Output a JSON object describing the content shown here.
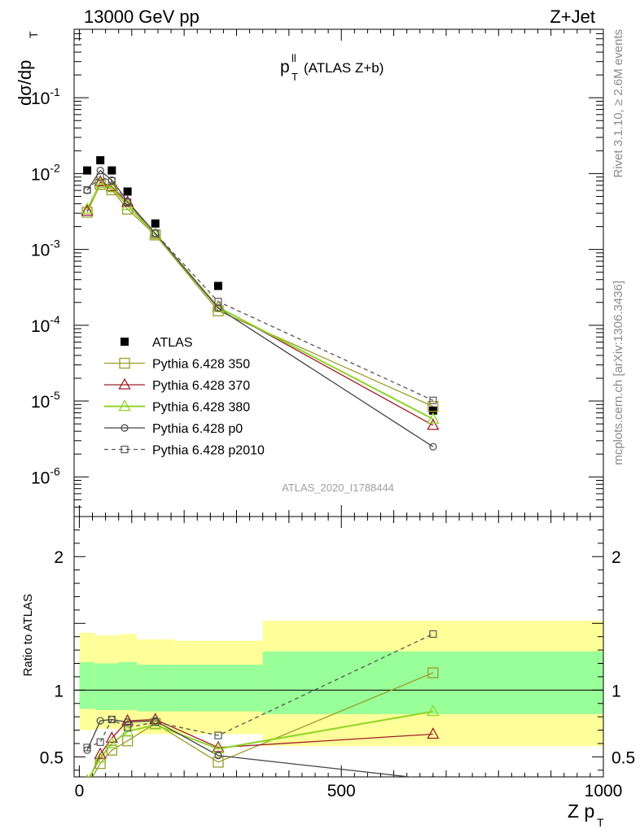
{
  "header": {
    "energy": "13000 GeV pp",
    "process": "Z+Jet",
    "plot_title_main": "p",
    "plot_title_sup": "ll",
    "plot_title_sub": "T",
    "plot_title_rest": "(ATLAS Z+b)",
    "analysis_id": "ATLAS_2020_I1788444",
    "rivet_note": "Rivet 3.1.10, ≥ 2.6M events",
    "mcplots_note": "mcplots.cern.ch [arXiv:1306.3436]"
  },
  "colors": {
    "atlas": "#000000",
    "p350": "#9b9b2a",
    "p370": "#a01c2a",
    "p380": "#8fd42a",
    "p0": "#444444",
    "p2010": "#555555",
    "band_inner": "#99ff99",
    "band_outer": "#ffff99"
  },
  "chart_data": [
    {
      "type": "scatter",
      "panel": "main",
      "xlabel": "Z p_T",
      "ylabel": "dσ/dp_T",
      "yscale": "log",
      "xlim": [
        -10,
        1000
      ],
      "ylim": [
        3e-07,
        0.8
      ],
      "y_ticks": [
        "10^-6",
        "10^-5",
        "10^-4",
        "10^-3",
        "10^-2",
        "10^-1"
      ],
      "legend_position": "lower-left",
      "x": [
        15,
        40,
        62,
        92,
        145,
        265,
        675
      ],
      "series": [
        {
          "name": "ATLAS",
          "key": "atlas",
          "marker": "filled-square",
          "line": "none",
          "values": [
            0.011,
            0.015,
            0.011,
            0.0058,
            0.0022,
            0.00033,
            7.5e-06
          ]
        },
        {
          "name": "Pythia 6.428 350",
          "key": "p350",
          "marker": "open-square",
          "line": "solid",
          "values": [
            0.0031,
            0.0072,
            0.0061,
            0.0034,
            0.00155,
            0.000155,
            8.5e-06
          ]
        },
        {
          "name": "Pythia 6.428 370",
          "key": "p370",
          "marker": "open-triangle",
          "line": "solid",
          "values": [
            0.0032,
            0.0078,
            0.0067,
            0.0042,
            0.0016,
            0.000175,
            4.8e-06
          ]
        },
        {
          "name": "Pythia 6.428 380",
          "key": "p380",
          "marker": "open-triangle",
          "line": "solid",
          "values": [
            0.0034,
            0.0074,
            0.0065,
            0.0038,
            0.00158,
            0.000172,
            5.8e-06
          ]
        },
        {
          "name": "Pythia 6.428 p0",
          "key": "p0",
          "marker": "open-circle",
          "line": "solid",
          "values": [
            0.006,
            0.011,
            0.0082,
            0.0043,
            0.00163,
            0.000168,
            2.5e-06
          ]
        },
        {
          "name": "Pythia 6.428 p2010",
          "key": "p2010",
          "marker": "open-square-small",
          "line": "dashed",
          "values": [
            0.0061,
            0.009,
            0.008,
            0.0042,
            0.00163,
            0.000205,
            1.02e-05
          ]
        }
      ]
    },
    {
      "type": "scatter",
      "panel": "ratio",
      "ylabel": "Ratio to ATLAS",
      "xlim": [
        -10,
        1000
      ],
      "ylim": [
        0.35,
        2.3
      ],
      "y_ticks": [
        0.5,
        1,
        2
      ],
      "x_ticks": [
        0,
        500,
        1000
      ],
      "band_edges": [
        0,
        30,
        50,
        75,
        110,
        180,
        350,
        1000
      ],
      "band_inner": [
        [
          0.86,
          1.21
        ],
        [
          0.85,
          1.2
        ],
        [
          0.85,
          1.2
        ],
        [
          0.85,
          1.21
        ],
        [
          0.84,
          1.19
        ],
        [
          0.84,
          1.19
        ],
        [
          0.82,
          1.29
        ]
      ],
      "band_outer": [
        [
          0.7,
          1.43
        ],
        [
          0.71,
          1.41
        ],
        [
          0.71,
          1.41
        ],
        [
          0.7,
          1.42
        ],
        [
          0.67,
          1.38
        ],
        [
          0.67,
          1.37
        ],
        [
          0.58,
          1.52
        ]
      ],
      "x": [
        15,
        40,
        62,
        92,
        145,
        265,
        675
      ],
      "series": [
        {
          "name": "Pythia 6.428 350",
          "key": "p350",
          "values": [
            0.28,
            0.45,
            0.55,
            0.62,
            0.75,
            0.46,
            1.13
          ]
        },
        {
          "name": "Pythia 6.428 370",
          "key": "p370",
          "values": [
            0.3,
            0.52,
            0.64,
            0.77,
            0.78,
            0.57,
            0.67
          ]
        },
        {
          "name": "Pythia 6.428 380",
          "key": "p380",
          "values": [
            0.32,
            0.49,
            0.6,
            0.69,
            0.74,
            0.56,
            0.84
          ]
        },
        {
          "name": "Pythia 6.428 p0",
          "key": "p0",
          "values": [
            0.55,
            0.77,
            0.78,
            0.76,
            0.77,
            0.51,
            0.33
          ]
        },
        {
          "name": "Pythia 6.428 p2010",
          "key": "p2010",
          "values": [
            0.57,
            0.61,
            0.78,
            0.72,
            0.76,
            0.66,
            1.42
          ]
        }
      ]
    }
  ],
  "tick_labels": {
    "main_y": [
      {
        "base": "10",
        "exp": "-1",
        "val": 0.1
      },
      {
        "base": "10",
        "exp": "-2",
        "val": 0.01
      },
      {
        "base": "10",
        "exp": "-3",
        "val": 0.001
      },
      {
        "base": "10",
        "exp": "-4",
        "val": 0.0001
      },
      {
        "base": "10",
        "exp": "-5",
        "val": 1e-05
      },
      {
        "base": "10",
        "exp": "-6",
        "val": 1e-06
      }
    ],
    "ratio_y": [
      "0.5",
      "1",
      "2"
    ],
    "ratio_x": [
      "0",
      "500",
      "1000"
    ]
  },
  "axis": {
    "xlabel_main": "Z p",
    "xlabel_sub": "T",
    "ylabel_main": "dσ/dp",
    "ylabel_sub": "T",
    "ratio_ylabel": "Ratio to ATLAS"
  }
}
